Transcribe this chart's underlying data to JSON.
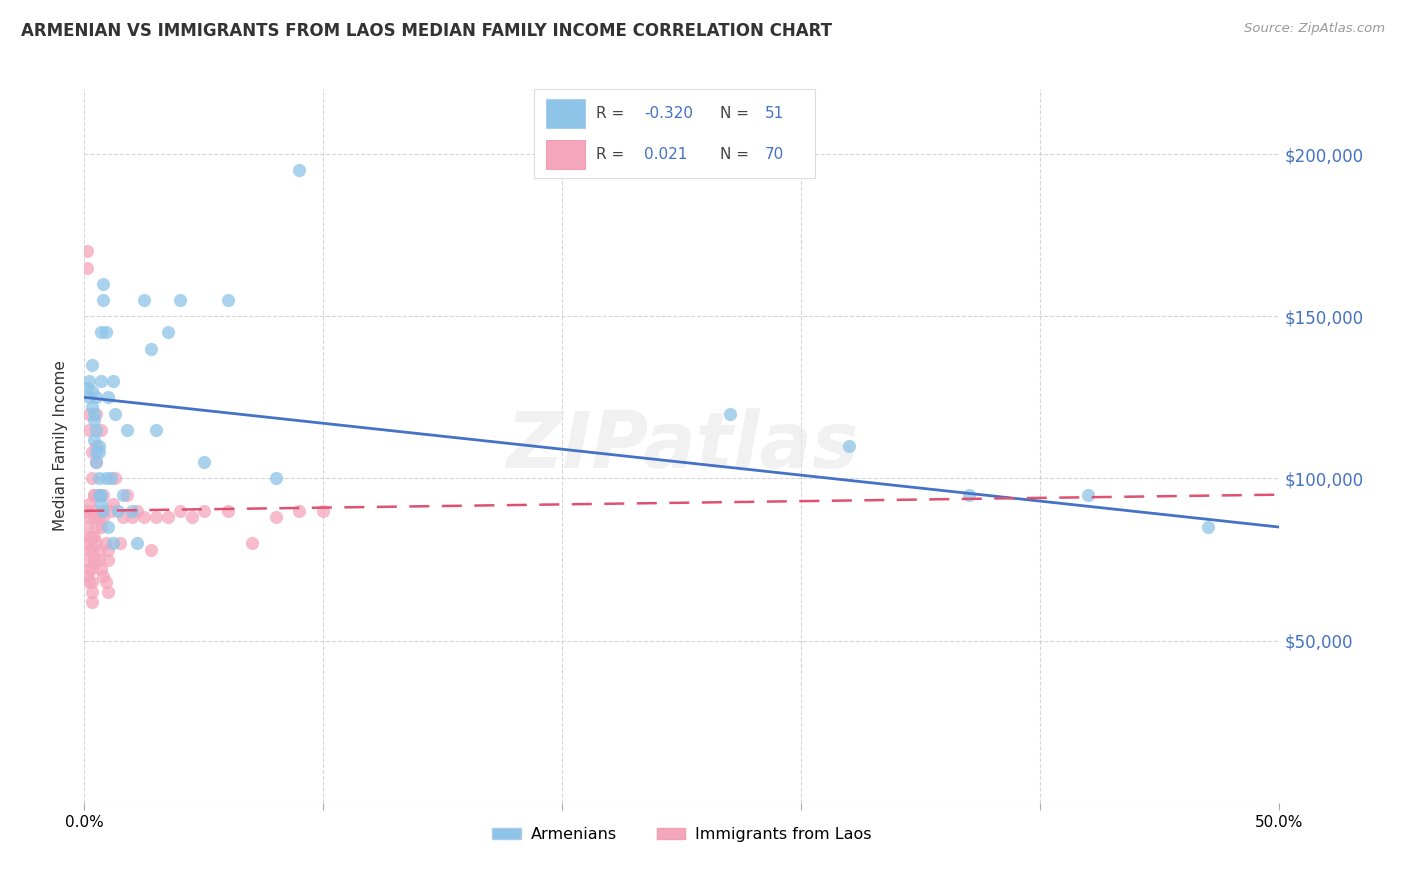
{
  "title": "ARMENIAN VS IMMIGRANTS FROM LAOS MEDIAN FAMILY INCOME CORRELATION CHART",
  "source": "Source: ZipAtlas.com",
  "ylabel": "Median Family Income",
  "yticks": [
    0,
    50000,
    100000,
    150000,
    200000
  ],
  "ytick_labels": [
    "",
    "$50,000",
    "$100,000",
    "$150,000",
    "$200,000"
  ],
  "xlim": [
    0.0,
    0.5
  ],
  "ylim": [
    0,
    220000
  ],
  "color_blue": "#8ec4e8",
  "color_pink": "#f4a6bc",
  "line_blue": "#4472c4",
  "line_pink": "#e05070",
  "watermark": "ZIPatlas",
  "armenians_x": [
    0.001,
    0.002,
    0.002,
    0.003,
    0.003,
    0.004,
    0.004,
    0.005,
    0.005,
    0.005,
    0.006,
    0.006,
    0.006,
    0.007,
    0.007,
    0.007,
    0.008,
    0.008,
    0.009,
    0.009,
    0.01,
    0.011,
    0.012,
    0.013,
    0.014,
    0.016,
    0.018,
    0.02,
    0.022,
    0.025,
    0.028,
    0.03,
    0.035,
    0.04,
    0.05,
    0.06,
    0.08,
    0.09,
    0.27,
    0.32,
    0.37,
    0.42,
    0.47,
    0.003,
    0.004,
    0.005,
    0.006,
    0.007,
    0.008,
    0.01,
    0.012
  ],
  "armenians_y": [
    128000,
    130000,
    125000,
    122000,
    135000,
    118000,
    112000,
    108000,
    125000,
    105000,
    95000,
    100000,
    110000,
    92000,
    130000,
    145000,
    155000,
    160000,
    145000,
    100000,
    125000,
    100000,
    130000,
    120000,
    90000,
    95000,
    115000,
    90000,
    80000,
    155000,
    140000,
    115000,
    145000,
    155000,
    105000,
    155000,
    100000,
    195000,
    120000,
    110000,
    95000,
    95000,
    85000,
    127000,
    120000,
    115000,
    108000,
    95000,
    90000,
    85000,
    80000
  ],
  "laos_x": [
    0.001,
    0.001,
    0.001,
    0.001,
    0.001,
    0.002,
    0.002,
    0.002,
    0.002,
    0.002,
    0.002,
    0.003,
    0.003,
    0.003,
    0.003,
    0.003,
    0.003,
    0.004,
    0.004,
    0.004,
    0.004,
    0.005,
    0.005,
    0.005,
    0.006,
    0.006,
    0.007,
    0.007,
    0.008,
    0.008,
    0.009,
    0.01,
    0.01,
    0.011,
    0.012,
    0.013,
    0.015,
    0.016,
    0.018,
    0.02,
    0.022,
    0.025,
    0.028,
    0.03,
    0.035,
    0.04,
    0.045,
    0.05,
    0.06,
    0.07,
    0.08,
    0.09,
    0.1,
    0.001,
    0.001,
    0.002,
    0.002,
    0.003,
    0.003,
    0.004,
    0.004,
    0.005,
    0.005,
    0.006,
    0.006,
    0.007,
    0.008,
    0.009,
    0.01
  ],
  "laos_y": [
    90000,
    85000,
    80000,
    75000,
    70000,
    92000,
    88000,
    82000,
    78000,
    72000,
    68000,
    82000,
    78000,
    72000,
    68000,
    65000,
    62000,
    95000,
    88000,
    82000,
    75000,
    120000,
    110000,
    105000,
    95000,
    88000,
    115000,
    85000,
    95000,
    88000,
    80000,
    75000,
    78000,
    90000,
    92000,
    100000,
    80000,
    88000,
    95000,
    88000,
    90000,
    88000,
    78000,
    88000,
    88000,
    90000,
    88000,
    90000,
    90000,
    80000,
    88000,
    90000,
    90000,
    170000,
    165000,
    120000,
    115000,
    108000,
    100000,
    95000,
    90000,
    85000,
    80000,
    78000,
    75000,
    72000,
    70000,
    68000,
    65000
  ]
}
